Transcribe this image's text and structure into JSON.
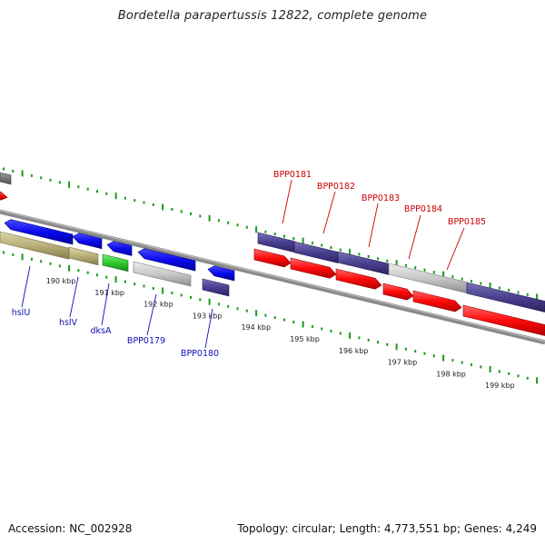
{
  "title": "Bordetella parapertussis 12822, complete genome",
  "footer": {
    "accession": "Accession: NC_002928",
    "summary": "Topology: circular; Length: 4,773,551 bp; Genes: 4,249"
  },
  "colors": {
    "tick_green": "#1a9a1a",
    "blue_gene": "#0a0af0",
    "navy_gene": "#4a4090",
    "red_gene": "#ff0a0a",
    "gray_gene": "#c8c8c8",
    "khaki_gene": "#b8b07a",
    "green_gene": "#30c830",
    "label_red": "#cc0000",
    "label_blue": "#1010b0",
    "backbone": "#8a8a8a"
  },
  "scale_labels": [
    "190 kbp",
    "191 kbp",
    "192 kbp",
    "193 kbp",
    "194 kbp",
    "195 kbp",
    "196 kbp",
    "197 kbp",
    "198 kbp",
    "199 kbp"
  ],
  "red_labels": [
    "BPP0181",
    "BPP0182",
    "BPP0183",
    "BPP0184",
    "BPP0185"
  ],
  "blue_labels": [
    "hslU",
    "hslV",
    "dksA",
    "BPP0179",
    "BPP0180"
  ]
}
